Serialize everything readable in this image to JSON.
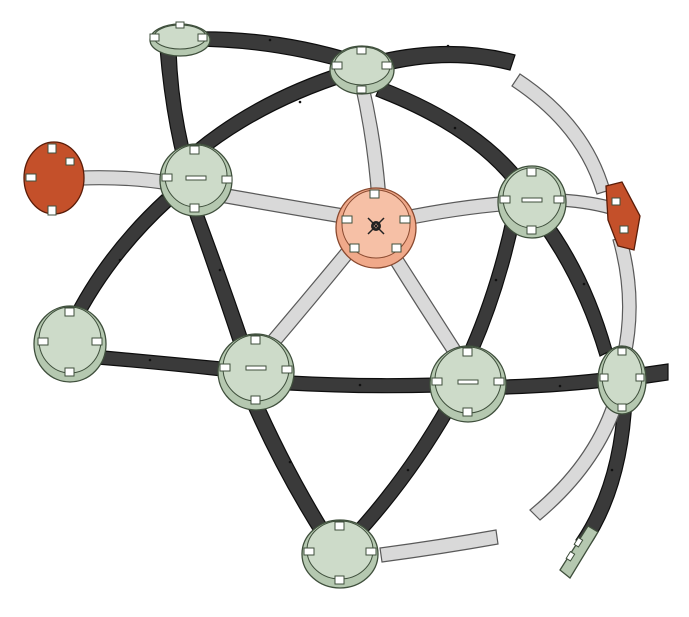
{
  "colors": {
    "background": "#ffffff",
    "dark_strut": "#3a3a3a",
    "light_strut": "#d9d9d9",
    "hub_green": "#b5c8b0",
    "hub_orange": "#c4502a",
    "hub_center": "#f0a98a"
  },
  "icon": "geodesic-dome-hub-and-strut-assembly"
}
